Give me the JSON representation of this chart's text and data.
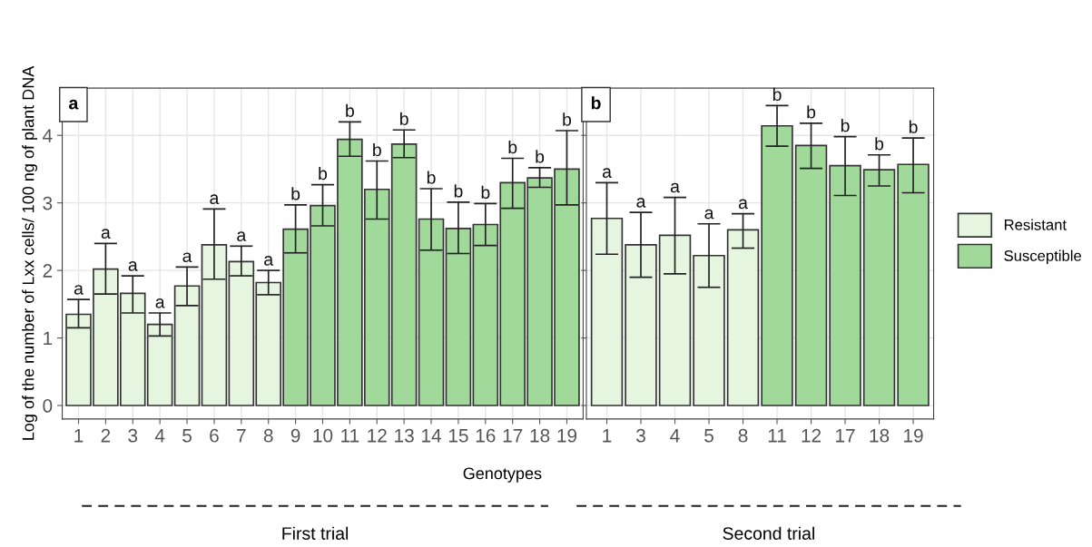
{
  "chart_data": [
    {
      "type": "bar",
      "ylabel": "Log of the number of Lxx cells/ 100 ng of plant DNA",
      "xlabel": "Genotypes",
      "categories": [
        "1",
        "2",
        "3",
        "4",
        "5",
        "6",
        "7",
        "8",
        "9",
        "10",
        "11",
        "12",
        "13",
        "14",
        "15",
        "16",
        "17",
        "18",
        "19"
      ],
      "series": [
        {
          "name": "Resistant",
          "color": "#e5f5e0",
          "values": [
            1.35,
            2.02,
            1.66,
            1.2,
            1.77,
            2.38,
            2.13,
            1.82,
            null,
            null,
            null,
            null,
            null,
            null,
            null,
            null,
            null,
            null,
            null
          ],
          "errors": [
            [
              1.15,
              1.57
            ],
            [
              1.65,
              2.4
            ],
            [
              1.37,
              1.92
            ],
            [
              1.03,
              1.37
            ],
            [
              1.48,
              2.05
            ],
            [
              1.87,
              2.91
            ],
            [
              1.92,
              2.36
            ],
            [
              1.64,
              2.0
            ],
            null,
            null,
            null,
            null,
            null,
            null,
            null,
            null,
            null,
            null,
            null
          ],
          "value_labels": [
            "a",
            "a",
            "a",
            "a",
            "a",
            "a",
            "a",
            "a",
            null,
            null,
            null,
            null,
            null,
            null,
            null,
            null,
            null,
            null,
            null
          ]
        },
        {
          "name": "Susceptible",
          "color": "#a1d99b",
          "values": [
            null,
            null,
            null,
            null,
            null,
            null,
            null,
            null,
            2.61,
            2.96,
            3.94,
            3.2,
            3.87,
            2.76,
            2.62,
            2.68,
            3.3,
            3.37,
            3.5
          ],
          "errors": [
            null,
            null,
            null,
            null,
            null,
            null,
            null,
            null,
            [
              2.26,
              2.97
            ],
            [
              2.66,
              3.27
            ],
            [
              3.69,
              4.2
            ],
            [
              2.76,
              3.62
            ],
            [
              3.67,
              4.08
            ],
            [
              2.3,
              3.21
            ],
            [
              2.25,
              3.01
            ],
            [
              2.37,
              2.99
            ],
            [
              2.92,
              3.66
            ],
            [
              3.23,
              3.52
            ],
            [
              2.97,
              4.07
            ]
          ],
          "value_labels": [
            null,
            null,
            null,
            null,
            null,
            null,
            null,
            null,
            "b",
            "b",
            "b",
            "b",
            "b",
            "b",
            "b",
            "b",
            "b",
            "b",
            "b"
          ]
        }
      ],
      "ylim": [
        -0.2,
        4.7
      ],
      "yticks": [
        0,
        1,
        2,
        3,
        4
      ],
      "grid": true,
      "legend": "right",
      "annotations": [
        "a",
        "First trial"
      ]
    },
    {
      "type": "bar",
      "categories": [
        "1",
        "3",
        "4",
        "5",
        "8",
        "11",
        "12",
        "17",
        "18",
        "19"
      ],
      "series": [
        {
          "color": "#e5f5e0",
          "values": [
            2.77,
            2.38,
            2.52,
            2.22,
            2.6,
            null,
            null,
            null,
            null,
            null
          ],
          "errors": [
            [
              2.24,
              3.3
            ],
            [
              1.9,
              2.86
            ],
            [
              1.95,
              3.08
            ],
            [
              1.75,
              2.69
            ],
            [
              2.33,
              2.84
            ],
            null,
            null,
            null,
            null,
            null
          ],
          "value_labels": [
            "a",
            "a",
            "a",
            "a",
            "a",
            null,
            null,
            null,
            null,
            null
          ]
        },
        {
          "color": "#a1d99b",
          "values": [
            null,
            null,
            null,
            null,
            null,
            4.14,
            3.85,
            3.55,
            3.49,
            3.57
          ],
          "errors": [
            null,
            null,
            null,
            null,
            null,
            [
              3.84,
              4.44
            ],
            [
              3.51,
              4.18
            ],
            [
              3.11,
              3.98
            ],
            [
              3.25,
              3.71
            ],
            [
              3.15,
              3.96
            ]
          ],
          "value_labels": [
            null,
            null,
            null,
            null,
            null,
            "b",
            "b",
            "b",
            "b",
            "b"
          ]
        }
      ],
      "ylim": [
        -0.2,
        4.7
      ],
      "yticks": [
        0,
        1,
        2,
        3,
        4
      ],
      "tick_labels": "x",
      "grid": true,
      "annotations": [
        "b",
        "Second trial"
      ]
    }
  ]
}
